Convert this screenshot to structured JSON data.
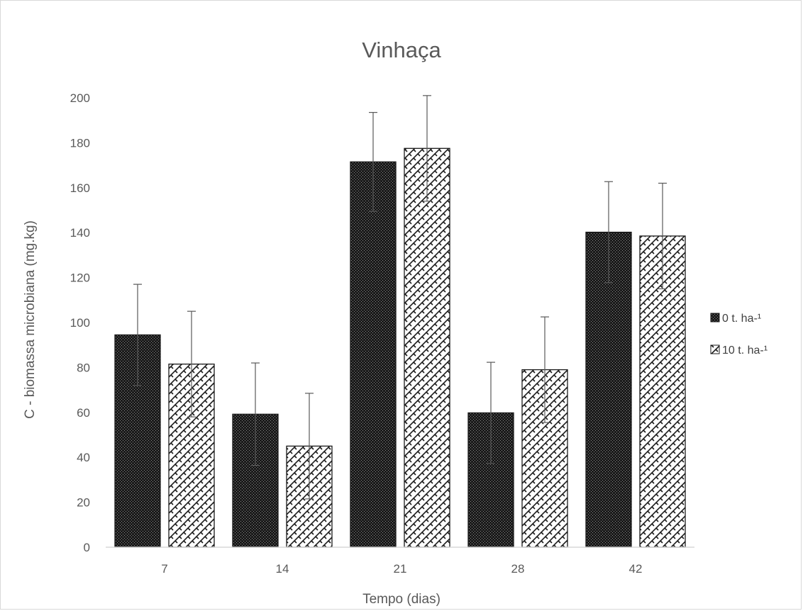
{
  "chart_data": {
    "type": "bar",
    "title": "Vinhaça",
    "xlabel": "Tempo (dias)",
    "ylabel": "C - biomassa microbiana (mg.kg)",
    "categories": [
      "7",
      "14",
      "21",
      "28",
      "42"
    ],
    "ylim": [
      0,
      200
    ],
    "yticks": [
      0,
      20,
      40,
      60,
      80,
      100,
      120,
      140,
      160,
      180,
      200
    ],
    "grid": false,
    "legend_position": "right",
    "error_bars": true,
    "series": [
      {
        "name": "0 t. ha-¹",
        "pattern": "dark-dotted",
        "color": "#262626",
        "values": [
          94.5,
          59.2,
          171.5,
          59.8,
          140.2
        ],
        "errors": [
          22.5,
          22.8,
          22.0,
          22.5,
          22.5
        ]
      },
      {
        "name": "10 t. ha-¹",
        "pattern": "light-zigzag",
        "color": "#ffffff",
        "values": [
          81.5,
          45.0,
          177.5,
          79.0,
          138.5
        ],
        "errors": [
          23.5,
          23.5,
          23.5,
          23.5,
          23.5
        ]
      }
    ]
  }
}
